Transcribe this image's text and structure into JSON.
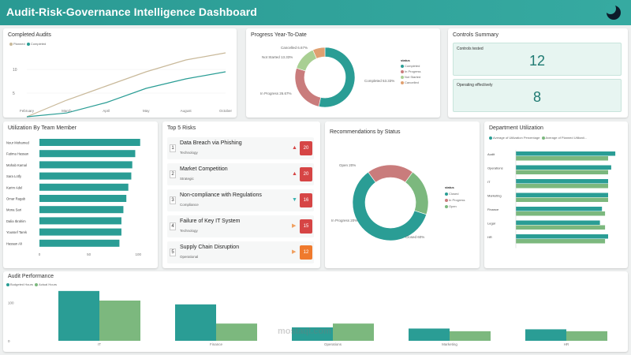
{
  "header": {
    "title": "Audit-Risk-Governance Intelligence Dashboard",
    "logo_icon": "moon-icon"
  },
  "colors": {
    "teal": "#2a9d95",
    "green": "#7cb87e",
    "rose": "#c97c7c",
    "tan": "#c9b99a",
    "lightgreen": "#a9cf93",
    "header": "#2a9a93"
  },
  "completed_audits": {
    "title": "Completed Audits",
    "legend": [
      "Planned",
      "Completed"
    ],
    "y_ticks": [
      "10",
      "5"
    ],
    "chart_data": {
      "type": "line",
      "x": [
        "February",
        "March",
        "April",
        "May",
        "August",
        "October"
      ],
      "series": [
        {
          "name": "Planned",
          "values": [
            0,
            3.5,
            6.5,
            9.5,
            12,
            13.5
          ]
        },
        {
          "name": "Completed",
          "values": [
            0,
            0.8,
            3,
            6,
            8,
            9.5
          ]
        }
      ]
    }
  },
  "progress": {
    "title": "Progress Year-To-Date",
    "legend_title": "status",
    "legend": [
      "Completed",
      "In Progress",
      "Not Started",
      "Cancelled"
    ],
    "labels": [
      "Cancelled 6.67%",
      "Not Started 13.33%",
      "In Progress 26.67%",
      "Completed 53.33%"
    ],
    "chart_data": {
      "type": "pie",
      "categories": [
        "Completed",
        "In Progress",
        "Not Started",
        "Cancelled"
      ],
      "values": [
        53.33,
        26.67,
        13.33,
        6.67
      ]
    }
  },
  "controls": {
    "title": "Controls Summary",
    "tested_label": "Controls tested",
    "tested_value": "12",
    "effective_label": "Operating effectively",
    "effective_value": "8"
  },
  "utilization": {
    "title": "Utilization By Team Member",
    "x_ticks": [
      "0",
      "50",
      "100"
    ],
    "chart_data": {
      "type": "bar",
      "categories": [
        "Nour Mohamed",
        "Fatima Hassan",
        "Mohab Kamal",
        "Sara Lotfy",
        "Karim Adel",
        "Omar Ragab",
        "Mona Sari",
        "Dalia Ibrahim",
        "Youssef Tarek",
        "Hassan Ali"
      ],
      "values": [
        102,
        97,
        94,
        93,
        90,
        88,
        85,
        83,
        83,
        81
      ],
      "xlim": [
        0,
        115
      ]
    }
  },
  "top_risks": {
    "title": "Top 5 Risks",
    "items": [
      {
        "num": "1",
        "name": "Data Breach via Phishing",
        "category": "Technology",
        "score": "20",
        "arrow": "▲",
        "arrow_color": "#d64545",
        "score_color": "#d64545"
      },
      {
        "num": "2",
        "name": "Market Competition",
        "category": "Strategic",
        "score": "20",
        "arrow": "▲",
        "arrow_color": "#d64545",
        "score_color": "#d64545"
      },
      {
        "num": "3",
        "name": "Non-compliance with Regulations",
        "category": "Compliance",
        "score": "16",
        "arrow": "▼",
        "arrow_color": "#3bb3b0",
        "score_color": "#d64545"
      },
      {
        "num": "4",
        "name": "Failure of Key IT System",
        "category": "Technology",
        "score": "15",
        "arrow": "▶",
        "arrow_color": "#f0a060",
        "score_color": "#d64545"
      },
      {
        "num": "5",
        "name": "Supply Chain Disruption",
        "category": "Operational",
        "score": "12",
        "arrow": "▶",
        "arrow_color": "#f0a060",
        "score_color": "#ef7a2d"
      }
    ]
  },
  "recommendations": {
    "title": "Recommendations by Status",
    "legend_title": "status",
    "legend": [
      "Closed",
      "In Progress",
      "Open"
    ],
    "labels": [
      "Open 20%",
      "In Progress 20%",
      "Closed 60%"
    ],
    "chart_data": {
      "type": "pie",
      "categories": [
        "Closed",
        "In Progress",
        "Open"
      ],
      "values": [
        60,
        20,
        20
      ]
    }
  },
  "department": {
    "title": "Department Utilization",
    "legend": [
      "Average of Utilization Percentage",
      "Average of Planned Utilizati..."
    ],
    "chart_data": {
      "type": "bar",
      "categories": [
        "Audit",
        "Operations",
        "IT",
        "Marketing",
        "Finance",
        "Legal",
        "HR"
      ],
      "series": [
        {
          "name": "Average of Utilization Percentage",
          "values": [
            97,
            93,
            90,
            90,
            84,
            82,
            90
          ]
        },
        {
          "name": "Average of Planned Utilization",
          "values": [
            90,
            90,
            90,
            90,
            87,
            87,
            87
          ]
        }
      ],
      "xlim": [
        0,
        100
      ]
    }
  },
  "audit_performance": {
    "title": "Audit Performance",
    "legend": [
      "Budgeted Hours",
      "Actual Hours"
    ],
    "y_ticks": [
      "100",
      "0"
    ],
    "chart_data": {
      "type": "bar",
      "categories": [
        "IT",
        "Finance",
        "Operations",
        "Marketing",
        "HR"
      ],
      "series": [
        {
          "name": "Budgeted Hours",
          "values": [
            130,
            95,
            35,
            32,
            30
          ]
        },
        {
          "name": "Actual Hours",
          "values": [
            105,
            45,
            45,
            25,
            25
          ]
        }
      ],
      "ylim": [
        0,
        140
      ]
    }
  },
  "watermark": "mostaql.com"
}
